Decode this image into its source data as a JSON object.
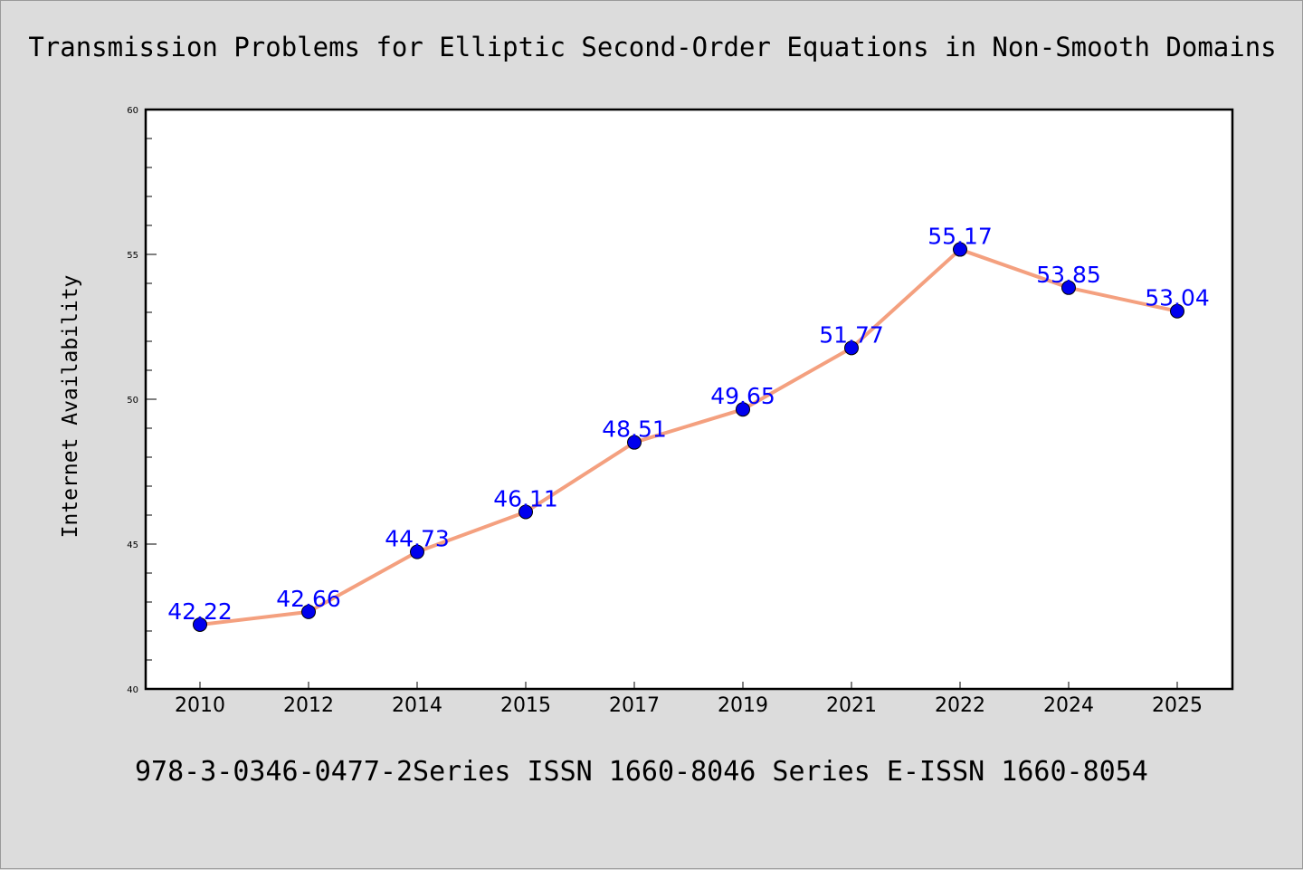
{
  "chart_data": {
    "type": "line",
    "title": "Transmission Problems for Elliptic Second-Order Equations in Non-Smooth Domains",
    "xlabel": "",
    "ylabel": "Internet Availability",
    "categories": [
      "2010",
      "2012",
      "2014",
      "2015",
      "2017",
      "2019",
      "2021",
      "2022",
      "2024",
      "2025"
    ],
    "series": [
      {
        "values": [
          42.22,
          42.66,
          44.73,
          46.11,
          48.51,
          49.65,
          51.77,
          55.17,
          53.85,
          53.04
        ]
      }
    ],
    "data_labels": [
      "42.22",
      "42.66",
      "44.73",
      "46.11",
      "48.51",
      "49.65",
      "51.77",
      "55.17",
      "53.85",
      "53.04"
    ],
    "ylim": [
      40,
      60
    ],
    "yticks": [
      "40",
      "45",
      "50",
      "55",
      "60"
    ],
    "grid": false,
    "legend": "none",
    "footer": "978-3-0346-0477-2Series ISSN 1660-8046 Series E-ISSN 1660-8054",
    "colors": {
      "line": "#f4a07f",
      "marker": "#0000ee",
      "label": "#0000ff",
      "background": "#dcdcdc",
      "plot_background": "#ffffff"
    }
  }
}
